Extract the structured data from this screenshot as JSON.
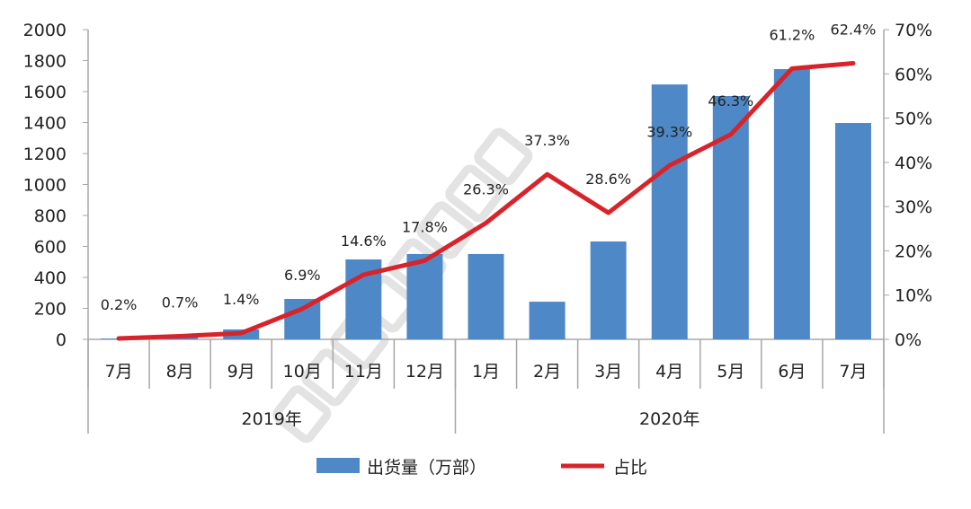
{
  "chart_data": {
    "type": "bar+line",
    "categories": [
      "7月",
      "8月",
      "9月",
      "10月",
      "11月",
      "12月",
      "1月",
      "2月",
      "3月",
      "4月",
      "5月",
      "6月",
      "7月"
    ],
    "groups": [
      {
        "label": "2019年",
        "count": 6
      },
      {
        "label": "2020年",
        "count": 7
      }
    ],
    "y_left": {
      "ylim": [
        0,
        2000
      ],
      "ticks": [
        "0",
        "200",
        "400",
        "600",
        "800",
        "1000",
        "1200",
        "1400",
        "1600",
        "1800",
        "2000"
      ]
    },
    "y_right": {
      "ylim": [
        0,
        70
      ],
      "ticks": [
        "0%",
        "10%",
        "20%",
        "30%",
        "40%",
        "50%",
        "60%",
        "70%"
      ]
    },
    "series": [
      {
        "name": "出货量（万部）",
        "type": "bar",
        "color": "#4f88c6",
        "values": [
          5,
          12,
          64,
          261,
          516,
          551,
          551,
          243,
          632,
          1646,
          1571,
          1745,
          1397
        ]
      },
      {
        "name": "占比",
        "type": "line",
        "axis": "right",
        "color": "#d9232a",
        "values": [
          0.2,
          0.7,
          1.4,
          6.9,
          14.6,
          17.8,
          26.3,
          37.3,
          28.6,
          39.3,
          46.3,
          61.2,
          62.4
        ],
        "labels": [
          "0.2%",
          "0.7%",
          "1.4%",
          "6.9%",
          "14.6%",
          "17.8%",
          "26.3%",
          "37.3%",
          "28.6%",
          "39.3%",
          "46.3%",
          "61.2%",
          "62.4%"
        ]
      }
    ],
    "legend": "bottom",
    "grid": false,
    "watermark": "CAICT 中国信通院"
  }
}
